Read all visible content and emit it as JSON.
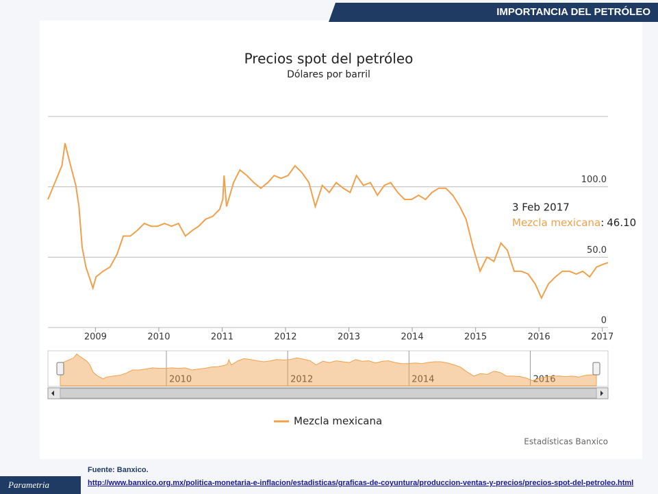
{
  "header": {
    "title": "IMPORTANCIA DEL PETRÓLEO"
  },
  "chart_data": {
    "type": "line",
    "title": "Precios spot del petróleo",
    "subtitle": "Dólares por barril",
    "x": [
      2008.25,
      2008.36,
      2008.47,
      2008.52,
      2008.58,
      2008.69,
      2008.74,
      2008.79,
      2008.85,
      2008.96,
      2009.01,
      2009.12,
      2009.23,
      2009.34,
      2009.44,
      2009.55,
      2009.66,
      2009.77,
      2009.88,
      2009.98,
      2010.09,
      2010.2,
      2010.31,
      2010.42,
      2010.53,
      2010.63,
      2010.74,
      2010.85,
      2010.96,
      2011.01,
      2011.03,
      2011.07,
      2011.18,
      2011.28,
      2011.39,
      2011.5,
      2011.61,
      2011.72,
      2011.82,
      2011.93,
      2012.04,
      2012.15,
      2012.26,
      2012.37,
      2012.47,
      2012.58,
      2012.69,
      2012.8,
      2012.91,
      2013.02,
      2013.12,
      2013.23,
      2013.34,
      2013.45,
      2013.56,
      2013.66,
      2013.77,
      2013.88,
      2013.99,
      2014.1,
      2014.21,
      2014.31,
      2014.42,
      2014.53,
      2014.64,
      2014.75,
      2014.85,
      2014.96,
      2015.07,
      2015.18,
      2015.29,
      2015.4,
      2015.5,
      2015.61,
      2015.72,
      2015.83,
      2015.94,
      2016.04,
      2016.15,
      2016.26,
      2016.37,
      2016.48,
      2016.59,
      2016.69,
      2016.8,
      2016.91,
      2017.02,
      2017.09
    ],
    "xlim": [
      2008.25,
      2017.09
    ],
    "xticks": [
      2009,
      2010,
      2011,
      2012,
      2013,
      2014,
      2015,
      2016,
      2017
    ],
    "ylim": [
      0,
      150
    ],
    "yticks": [
      0,
      {
        "value": 50,
        "label": "50.0"
      },
      {
        "value": 100,
        "label": "100.0"
      }
    ],
    "grid": true,
    "series": [
      {
        "name": "Mezcla mexicana",
        "color": "#f0a04b",
        "values": [
          91,
          103,
          115,
          131,
          120,
          101,
          86,
          57,
          43,
          28,
          36,
          40,
          43,
          52,
          65,
          65,
          69,
          74,
          72,
          72,
          74,
          72,
          74,
          65,
          69,
          72,
          77,
          79,
          84,
          91,
          108,
          86,
          103,
          112,
          108,
          103,
          99,
          103,
          108,
          106,
          108,
          115,
          110,
          103,
          86,
          101,
          96,
          103,
          99,
          96,
          108,
          101,
          103,
          94,
          101,
          103,
          96,
          91,
          91,
          94,
          91,
          96,
          99,
          99,
          94,
          86,
          77,
          57,
          40,
          50,
          47,
          60,
          55,
          40,
          40,
          38,
          31,
          21,
          31,
          36,
          40,
          40,
          38,
          40,
          36,
          43,
          45,
          46.1
        ]
      }
    ],
    "legend": "bottom",
    "tooltip": {
      "date": "3 Feb 2017",
      "label": "Mezcla mexicana",
      "separator": ":",
      "value": 46.1,
      "value_label": "46.10"
    },
    "credit": "Estadísticas Banxico",
    "navigator": {
      "xticks": [
        2010,
        2012,
        2014,
        2016
      ]
    }
  },
  "footer": {
    "source": "Fuente: Banxico.",
    "url": "http://www.banxico.org.mx/politica-monetaria-e-inflacion/estadisticas/graficas-de-coyuntura/produccion-ventas-y-precios/precios-spot-del-petroleo.html"
  },
  "logo": "Parametria"
}
